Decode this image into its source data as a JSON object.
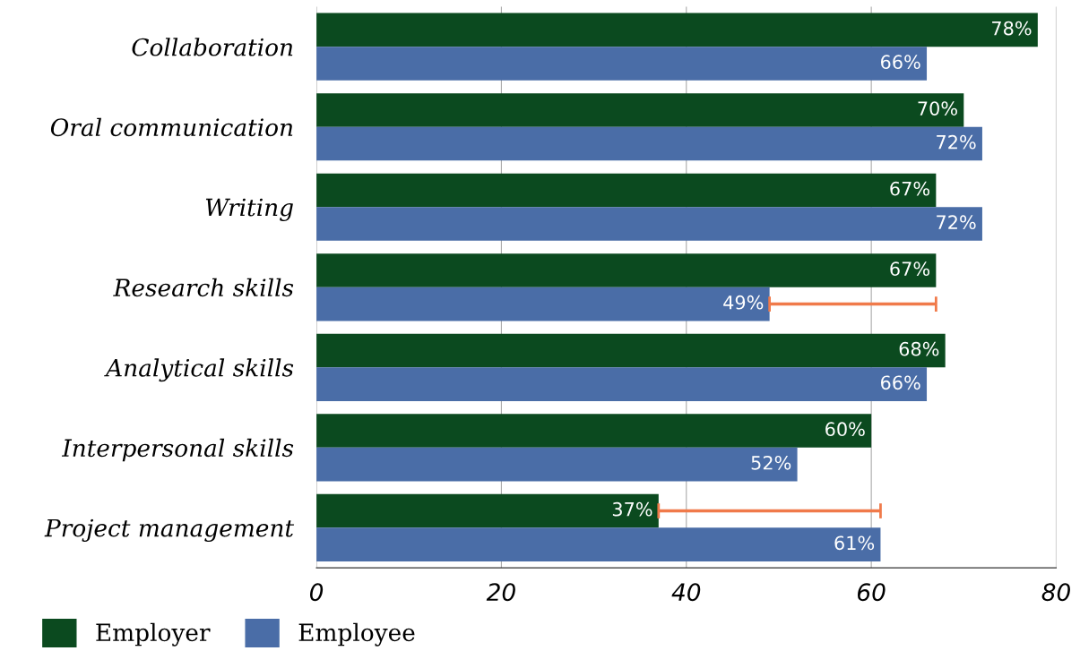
{
  "chart_data": {
    "type": "bar",
    "orientation": "horizontal",
    "categories": [
      "Collaboration",
      "Oral communication",
      "Writing",
      "Research skills",
      "Analytical skills",
      "Interpersonal skills",
      "Project management"
    ],
    "series": [
      {
        "name": "Employer",
        "color": "#0b4a1f",
        "values": [
          78,
          70,
          67,
          67,
          68,
          60,
          37
        ],
        "value_labels": [
          "78%",
          "70%",
          "67%",
          "67%",
          "68%",
          "60%",
          "37%"
        ],
        "errors": [
          null,
          null,
          null,
          null,
          null,
          null,
          [
            37,
            61
          ]
        ]
      },
      {
        "name": "Employee",
        "color": "#4a6da7",
        "values": [
          66,
          72,
          72,
          49,
          66,
          52,
          61
        ],
        "value_labels": [
          "66%",
          "72%",
          "72%",
          "49%",
          "66%",
          "52%",
          "61%"
        ],
        "errors": [
          null,
          null,
          null,
          [
            49,
            67
          ],
          null,
          null,
          null
        ]
      }
    ],
    "xlim": [
      0,
      80
    ],
    "xticks": [
      0,
      20,
      40,
      60,
      80
    ],
    "grid": "x",
    "legend": "bottom left"
  }
}
